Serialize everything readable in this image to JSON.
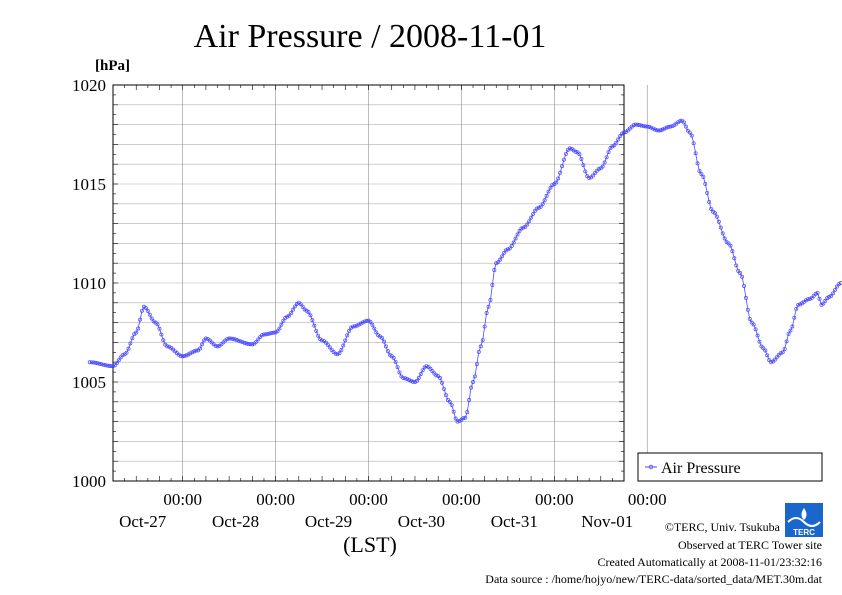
{
  "chart_data": {
    "type": "line",
    "title": "Air Pressure / 2008-11-01",
    "ylabel": "[hPa]",
    "xlabel": "(LST)",
    "ylim": [
      1000,
      1020
    ],
    "yticks": [
      "1020",
      "1015",
      "1010",
      "1005",
      "1000"
    ],
    "xlim_hours": [
      -138,
      -6
    ],
    "xticks": [
      {
        "time": "00:00",
        "date": "Oct-27"
      },
      {
        "time": "00:00",
        "date": "Oct-28"
      },
      {
        "time": "00:00",
        "date": "Oct-29"
      },
      {
        "time": "00:00",
        "date": "Oct-30"
      },
      {
        "time": "00:00",
        "date": "Oct-31"
      },
      {
        "time": "00:00",
        "date": "Nov-01"
      }
    ],
    "grid": true,
    "legend_position": "right",
    "series": [
      {
        "name": "Air Pressure",
        "color": "#4a4aff",
        "points": [
          [
            "10-26 00:00",
            1006.0
          ],
          [
            "10-26 06:00",
            1005.8
          ],
          [
            "10-26 09:00",
            1006.4
          ],
          [
            "10-26 12:00",
            1007.5
          ],
          [
            "10-26 14:00",
            1008.8
          ],
          [
            "10-26 17:00",
            1008.0
          ],
          [
            "10-26 20:00",
            1006.8
          ],
          [
            "10-27 00:00",
            1006.3
          ],
          [
            "10-27 04:00",
            1006.6
          ],
          [
            "10-27 06:00",
            1007.2
          ],
          [
            "10-27 09:00",
            1006.8
          ],
          [
            "10-27 12:00",
            1007.2
          ],
          [
            "10-27 18:00",
            1006.9
          ],
          [
            "10-27 21:00",
            1007.4
          ],
          [
            "10-28 00:00",
            1007.5
          ],
          [
            "10-28 03:00",
            1008.3
          ],
          [
            "10-28 06:00",
            1009.0
          ],
          [
            "10-28 08:00",
            1008.6
          ],
          [
            "10-28 12:00",
            1007.1
          ],
          [
            "10-28 16:00",
            1006.4
          ],
          [
            "10-28 20:00",
            1007.8
          ],
          [
            "10-29 00:00",
            1008.1
          ],
          [
            "10-29 03:00",
            1007.3
          ],
          [
            "10-29 06:00",
            1006.3
          ],
          [
            "10-29 09:00",
            1005.2
          ],
          [
            "10-29 12:00",
            1005.0
          ],
          [
            "10-29 15:00",
            1005.8
          ],
          [
            "10-29 18:00",
            1005.3
          ],
          [
            "10-29 21:00",
            1004.0
          ],
          [
            "10-29 23:00",
            1003.0
          ],
          [
            "10-30 01:00",
            1003.2
          ],
          [
            "10-30 03:00",
            1005.0
          ],
          [
            "10-30 05:00",
            1006.8
          ],
          [
            "10-30 07:00",
            1008.8
          ],
          [
            "10-30 09:00",
            1011.0
          ],
          [
            "10-30 12:00",
            1011.7
          ],
          [
            "10-30 16:00",
            1012.8
          ],
          [
            "10-30 20:00",
            1013.8
          ],
          [
            "10-31 00:00",
            1015.0
          ],
          [
            "10-31 04:00",
            1016.8
          ],
          [
            "10-31 06:00",
            1016.6
          ],
          [
            "10-31 09:00",
            1015.3
          ],
          [
            "10-31 12:00",
            1015.8
          ],
          [
            "10-31 15:00",
            1016.9
          ],
          [
            "10-31 18:00",
            1017.6
          ],
          [
            "10-31 21:00",
            1018.0
          ],
          [
            "11-01 00:00",
            1017.9
          ],
          [
            "11-01 03:00",
            1017.7
          ],
          [
            "11-01 06:00",
            1017.9
          ],
          [
            "11-01 09:00",
            1018.2
          ],
          [
            "11-01 11:00",
            1017.6
          ],
          [
            "11-01 14:00",
            1015.5
          ],
          [
            "11-01 17:00",
            1013.6
          ],
          [
            "11-01 21:00",
            1012.0
          ],
          [
            "11-02 00:00",
            1010.5
          ],
          [
            "11-02 03:00",
            1008.0
          ],
          [
            "11-02 06:00",
            1006.7
          ],
          [
            "11-02 08:00",
            1006.0
          ],
          [
            "11-02 11:00",
            1006.5
          ],
          [
            "11-02 13:00",
            1007.6
          ],
          [
            "11-02 15:00",
            1008.9
          ],
          [
            "11-02 18:00",
            1009.2
          ],
          [
            "11-02 20:00",
            1009.5
          ],
          [
            "11-02 21:00",
            1008.9
          ],
          [
            "11-02 23:00",
            1009.3
          ],
          [
            "11-03 02:00",
            1010.0
          ]
        ]
      }
    ]
  },
  "footer": {
    "copyright": "©TERC, Univ. Tsukuba",
    "observed": "Observed at TERC Tower site",
    "created": "Created Automatically at 2008-11-01/23:32:16",
    "source": "Data source : /home/hojyo/new/TERC-data/sorted_data/MET.30m.dat"
  },
  "logo": {
    "text": "TERC",
    "color": "#1a66cc"
  }
}
